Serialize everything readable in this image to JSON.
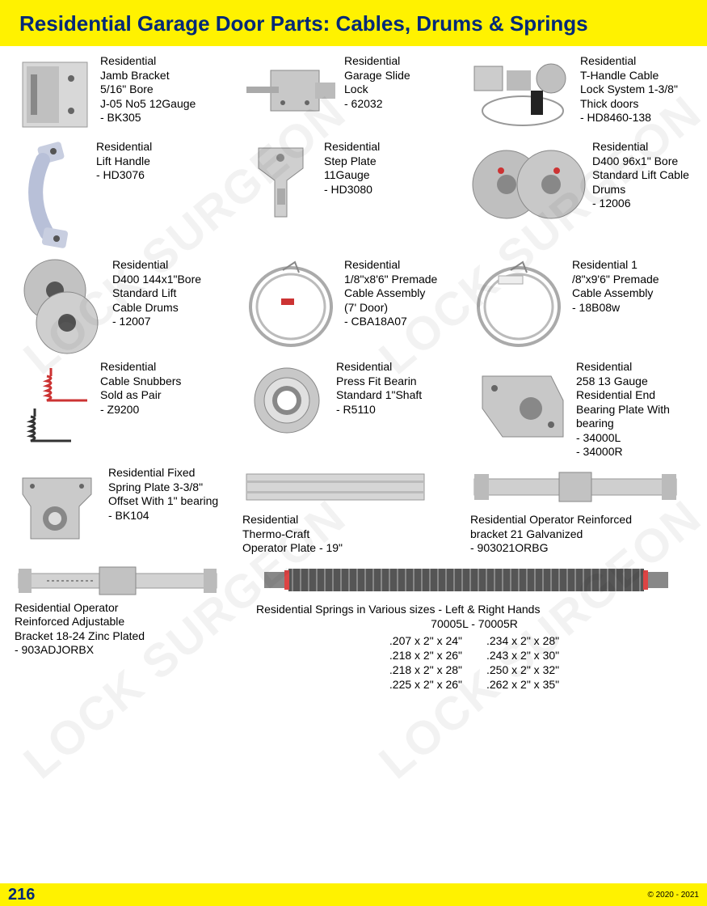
{
  "header": {
    "title": "Residential Garage Door Parts: Cables, Drums & Springs"
  },
  "footer": {
    "page": "216",
    "copyright": "© 2020 - 2021"
  },
  "watermark_text": "LOCK SURGEON",
  "products": {
    "r1c1": "Residential\nJamb Bracket\n5/16\" Bore\nJ-05 No5 12Gauge\n- BK305",
    "r1c2": "Residential\nGarage Slide\nLock\n- 62032",
    "r1c3": "Residential\nT-Handle Cable\nLock System 1-3/8\"\nThick doors\n- HD8460-138",
    "r2c1": "Residential\nLift Handle\n- HD3076",
    "r2c2": "Residential\nStep Plate\n11Gauge\n- HD3080",
    "r2c3": "Residential\nD400 96x1\" Bore\nStandard Lift Cable\nDrums\n- 12006",
    "r3c1": "Residential\nD400 144x1\"Bore\nStandard Lift\nCable Drums\n- 12007",
    "r3c2": "Residential\n1/8\"x8'6\" Premade\nCable Assembly\n(7' Door)\n- CBA18A07",
    "r3c3": "Residential 1\n/8\"x9'6\" Premade\nCable Assembly\n- 18B08w",
    "r4c1": "Residential\nCable Snubbers\nSold as Pair\n- Z9200",
    "r4c2": "Residential\nPress Fit Bearin\nStandard 1\"Shaft\n- R5110",
    "r4c3": "Residential\n258 13 Gauge\nResidential End\nBearing Plate With\nbearing\n- 34000L\n- 34000R",
    "r5c1": "Residential Fixed\nSpring Plate 3-3/8\"\nOffset With 1\" bearing\n- BK104",
    "r5c2": "Residential\nThermo-Craft\nOperator Plate - 19\"",
    "r5c3": "Residential Operator Reinforced\nbracket 21 Galvanized\n- 903021ORBG",
    "r6c1": "Residential Operator\nReinforced Adjustable\nBracket 18-24 Zinc Plated\n- 903ADJORBX"
  },
  "springs": {
    "title": "Residential Springs in Various sizes - Left & Right Hands",
    "sku": "70005L  -  70005R",
    "sizes_left": [
      ".207 x 2\" x 24\"",
      ".218 x 2\" x 26\"",
      ".218 x 2\" x 28\"",
      ".225 x 2\" x 26\""
    ],
    "sizes_right": [
      ".234 x 2\" x 28\"",
      ".243 x 2\" x 30\"",
      ".250 x 2\" x 32\"",
      ".262 x 2\" x 35\""
    ]
  }
}
